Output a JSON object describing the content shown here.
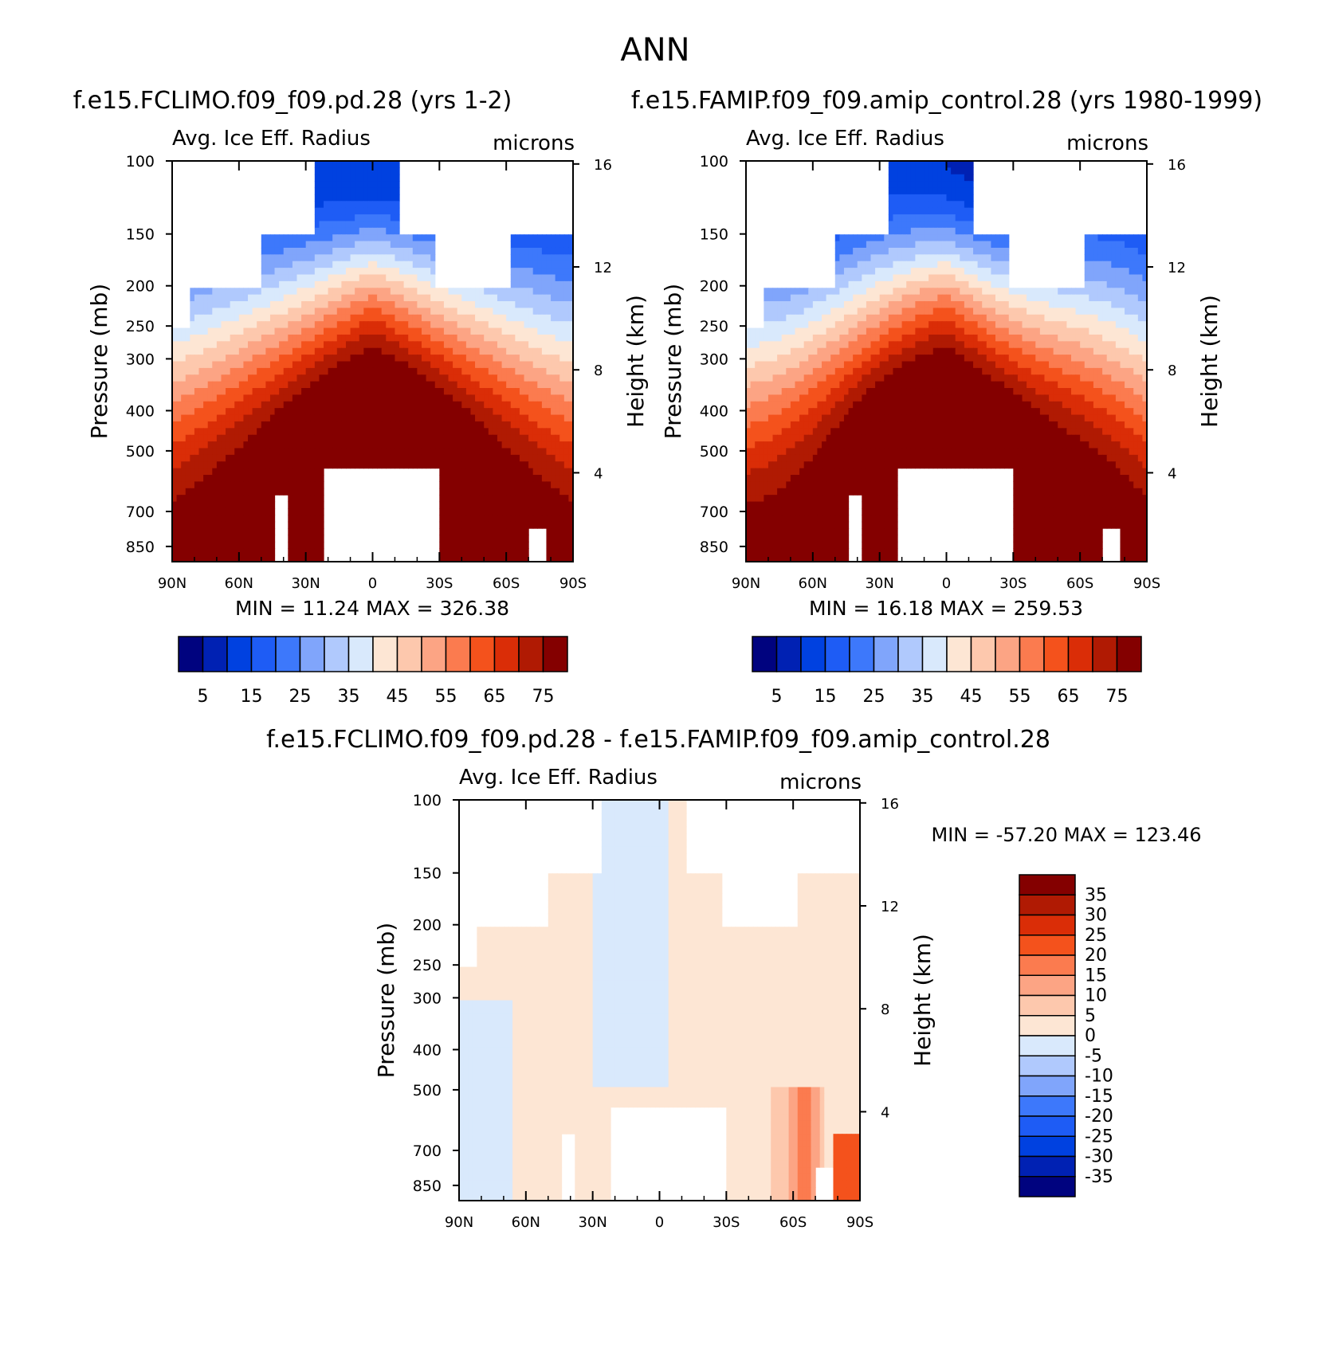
{
  "figure": {
    "title": "ANN"
  },
  "chart_data": [
    {
      "type": "heatmap",
      "panel": "top-left",
      "title": "f.e15.FCLIMO.f09_f09.pd.28 (yrs 1-2)",
      "left_label": "Avg. Ice Eff. Radius",
      "right_label": "microns",
      "ylabel": "Pressure (mb)",
      "y2label": "Height (km)",
      "x_ticks": [
        "90N",
        "60N",
        "30N",
        "0",
        "30S",
        "60S",
        "90S"
      ],
      "y_ticks": [
        "100",
        "150",
        "200",
        "250",
        "300",
        "400",
        "500",
        "700",
        "850"
      ],
      "y2_ticks": [
        "16",
        "12",
        "8",
        "4"
      ],
      "stats": "MIN =   11.24   MAX = 326.38",
      "colorbar": {
        "levels": [
          5,
          10,
          15,
          20,
          25,
          30,
          35,
          40,
          45,
          50,
          55,
          60,
          65,
          70,
          75
        ],
        "labels": [
          "5",
          "15",
          "25",
          "35",
          "45",
          "55",
          "65",
          "75"
        ]
      }
    },
    {
      "type": "heatmap",
      "panel": "top-right",
      "title": "f.e15.FAMIP.f09_f09.amip_control.28 (yrs 1980-1999)",
      "left_label": "Avg. Ice Eff. Radius",
      "right_label": "microns",
      "ylabel": "Pressure (mb)",
      "y2label": "Height (km)",
      "x_ticks": [
        "90N",
        "60N",
        "30N",
        "0",
        "30S",
        "60S",
        "90S"
      ],
      "y_ticks": [
        "100",
        "150",
        "200",
        "250",
        "300",
        "400",
        "500",
        "700",
        "850"
      ],
      "y2_ticks": [
        "16",
        "12",
        "8",
        "4"
      ],
      "stats": "MIN =   16.18   MAX = 259.53",
      "colorbar": {
        "levels": [
          5,
          10,
          15,
          20,
          25,
          30,
          35,
          40,
          45,
          50,
          55,
          60,
          65,
          70,
          75
        ],
        "labels": [
          "5",
          "15",
          "25",
          "35",
          "45",
          "55",
          "65",
          "75"
        ]
      }
    },
    {
      "type": "heatmap",
      "panel": "bottom",
      "title": "f.e15.FCLIMO.f09_f09.pd.28 - f.e15.FAMIP.f09_f09.amip_control.28",
      "left_label": "Avg. Ice Eff. Radius",
      "right_label": "microns",
      "ylabel": "Pressure (mb)",
      "y2label": "Height (km)",
      "x_ticks": [
        "90N",
        "60N",
        "30N",
        "0",
        "30S",
        "60S",
        "90S"
      ],
      "y_ticks": [
        "100",
        "150",
        "200",
        "250",
        "300",
        "400",
        "500",
        "700",
        "850"
      ],
      "y2_ticks": [
        "16",
        "12",
        "8",
        "4"
      ],
      "stats": "MIN = -57.20   MAX = 123.46",
      "colorbar": {
        "levels": [
          -35,
          -30,
          -25,
          -20,
          -15,
          -10,
          -5,
          0,
          5,
          10,
          15,
          20,
          25,
          30,
          35
        ],
        "labels": [
          "35",
          "30",
          "25",
          "20",
          "15",
          "10",
          "5",
          "0",
          "-5",
          "-10",
          "-15",
          "-20",
          "-25",
          "-30",
          "-35"
        ]
      }
    }
  ],
  "colors": {
    "palette16": [
      "#00037f",
      "#0021b3",
      "#0041e0",
      "#1e5cf5",
      "#3d78fb",
      "#80a5fb",
      "#b0c9fd",
      "#d9e9fc",
      "#fde6d4",
      "#fdc8ad",
      "#fca484",
      "#fb7b4f",
      "#f4521c",
      "#da2d07",
      "#b01a03",
      "#840000"
    ],
    "missing": "#ffffff"
  }
}
